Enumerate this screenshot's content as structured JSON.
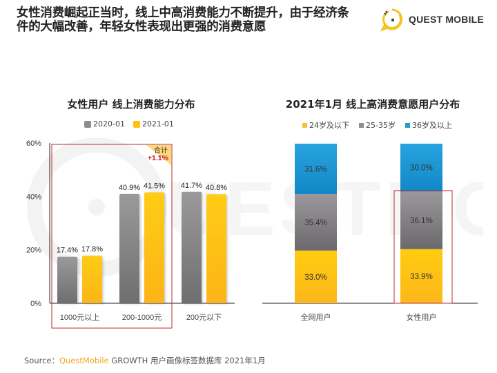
{
  "headline": {
    "line1": "女性消费崛起正当时，线上中高消费能力不断提升，由于经济条",
    "line2": "件的大幅改善，年轻女性表现出更强的消费意愿"
  },
  "logo": {
    "text": "QUEST MOBILE",
    "icon": "questmobile-logo-icon",
    "watermark_text": "QUESTMOBILE"
  },
  "colors": {
    "gray": "#8e8c8f",
    "yellow": "#ffc20e",
    "blue": "#1e9ad6",
    "highlight": "#c0272d",
    "annotation_bg": "#ffd87a",
    "annotation_text": "#d0121b"
  },
  "chart_data": [
    {
      "type": "bar",
      "title": "女性用户 线上消费能力分布",
      "categories": [
        "1000元以上",
        "200-1000元",
        "200元以下"
      ],
      "series": [
        {
          "name": "2020-01",
          "values": [
            17.4,
            40.9,
            41.7
          ],
          "labels": [
            "17.4%",
            "40.9%",
            "41.7%"
          ]
        },
        {
          "name": "2021-01",
          "values": [
            17.8,
            41.5,
            40.8
          ],
          "labels": [
            "17.8%",
            "41.5%",
            "40.8%"
          ]
        }
      ],
      "ylim": [
        0,
        60
      ],
      "yticks": [
        0,
        20,
        40,
        60
      ],
      "ytick_labels": [
        "0%",
        "20%",
        "40%",
        "60%"
      ],
      "xlabel": "",
      "ylabel": "",
      "grid": false,
      "legend": "top-center",
      "annotation": {
        "label": "合计",
        "value": "+1.1%",
        "highlighted_categories": [
          "1000元以上",
          "200-1000元"
        ]
      }
    },
    {
      "type": "bar",
      "stacked": true,
      "title": "2021年1月 线上高消费意愿用户分布",
      "categories": [
        "全网用户",
        "女性用户"
      ],
      "series": [
        {
          "name": "24岁及以下",
          "values": [
            33.0,
            33.9
          ],
          "labels": [
            "33.0%",
            "33.9%"
          ]
        },
        {
          "name": "25-35岁",
          "values": [
            35.4,
            36.1
          ],
          "labels": [
            "35.4%",
            "36.1%"
          ]
        },
        {
          "name": "36岁及以上",
          "values": [
            31.6,
            30.0
          ],
          "labels": [
            "31.6%",
            "30.0%"
          ]
        }
      ],
      "ylim": [
        0,
        100
      ],
      "legend": "top-center",
      "highlight": {
        "category": "女性用户",
        "series": [
          "24岁及以下",
          "25-35岁"
        ]
      }
    }
  ],
  "source": {
    "prefix": "Source：",
    "brand": "QuestMobile",
    "rest": " GROWTH 用户画像标签数据库 2021年1月"
  }
}
